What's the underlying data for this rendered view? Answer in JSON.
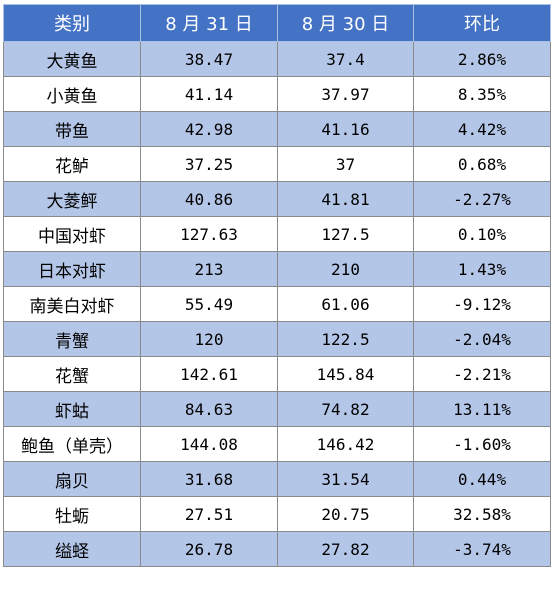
{
  "table": {
    "headers": [
      "类别",
      "8 月 31 日",
      "8 月 30 日",
      "环比"
    ],
    "rows": [
      [
        "大黄鱼",
        "38.47",
        "37.4",
        "2.86%"
      ],
      [
        "小黄鱼",
        "41.14",
        "37.97",
        "8.35%"
      ],
      [
        "带鱼",
        "42.98",
        "41.16",
        "4.42%"
      ],
      [
        "花鲈",
        "37.25",
        "37",
        "0.68%"
      ],
      [
        "大菱鲆",
        "40.86",
        "41.81",
        "-2.27%"
      ],
      [
        "中国对虾",
        "127.63",
        "127.5",
        "0.10%"
      ],
      [
        "日本对虾",
        "213",
        "210",
        "1.43%"
      ],
      [
        "南美白对虾",
        "55.49",
        "61.06",
        "-9.12%"
      ],
      [
        "青蟹",
        "120",
        "122.5",
        "-2.04%"
      ],
      [
        "花蟹",
        "142.61",
        "145.84",
        "-2.21%"
      ],
      [
        "虾蛄",
        "84.63",
        "74.82",
        "13.11%"
      ],
      [
        "鲍鱼（单壳）",
        "144.08",
        "146.42",
        "-1.60%"
      ],
      [
        "扇贝",
        "31.68",
        "31.54",
        "0.44%"
      ],
      [
        "牡蛎",
        "27.51",
        "20.75",
        "32.58%"
      ],
      [
        "缢蛏",
        "26.78",
        "27.82",
        "-3.74%"
      ]
    ]
  },
  "colors": {
    "header_bg": "#4472c4",
    "band_bg": "#b4c6e7",
    "plain_bg": "#ffffff"
  }
}
